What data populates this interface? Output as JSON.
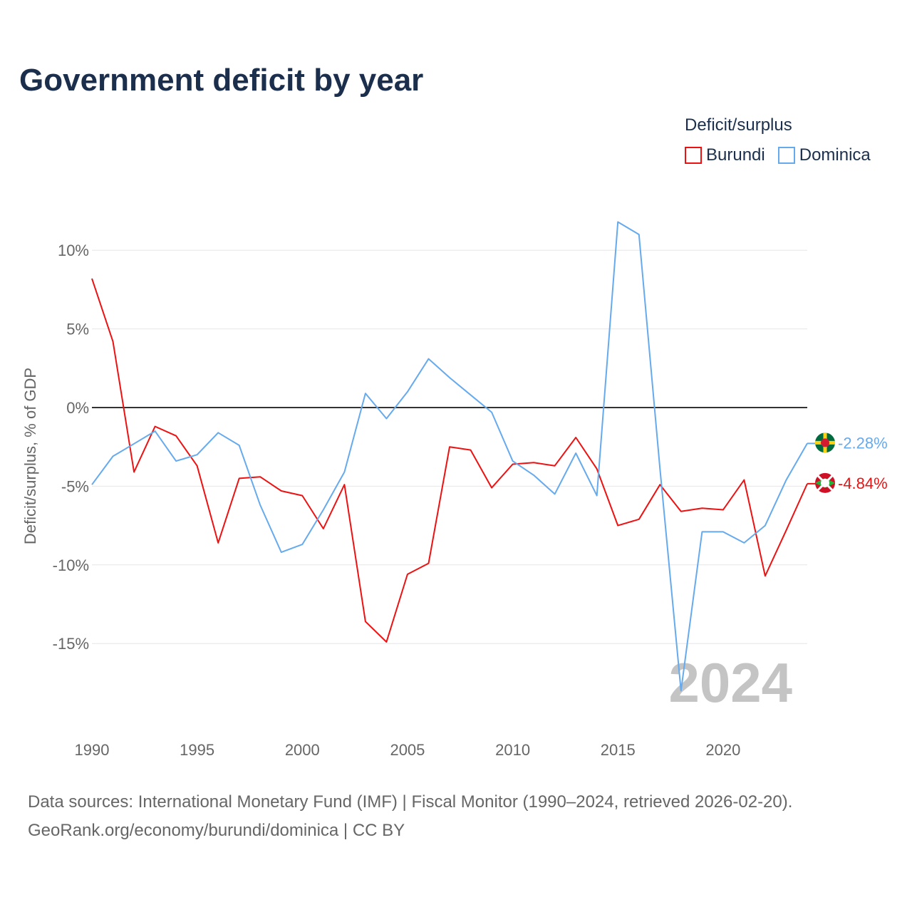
{
  "page": {
    "title": "Government deficit by year"
  },
  "legend": {
    "title": "Deficit/surplus",
    "items": [
      {
        "label": "Burundi",
        "color": "#ee1111"
      },
      {
        "label": "Dominica",
        "color": "#66aaee"
      }
    ]
  },
  "sources": {
    "line1": "Data sources: International Monetary Fund (IMF) | Fiscal Monitor (1990–2024, retrieved 2026-02-20).",
    "line2": "GeoRank.org/economy/burundi/dominica | CC BY"
  },
  "chart_data": {
    "type": "line",
    "title": "Government deficit by year",
    "xlabel": "",
    "ylabel": "Deficit/surplus, % of GDP",
    "xlim": [
      1990,
      2024
    ],
    "ylim": [
      -19,
      13
    ],
    "xticks": [
      1990,
      1995,
      2000,
      2005,
      2010,
      2015,
      2020
    ],
    "xtick_labels": [
      "1990",
      "1995",
      "2000",
      "2005",
      "2010",
      "2015",
      "2020"
    ],
    "yticks": [
      10,
      5,
      0,
      -5,
      -10,
      -15
    ],
    "ytick_labels": [
      "10%",
      "5%",
      "0%",
      "-5%",
      "-10%",
      "-15%"
    ],
    "year_label": "2024",
    "x": [
      1990,
      1991,
      1992,
      1993,
      1994,
      1995,
      1996,
      1997,
      1998,
      1999,
      2000,
      2001,
      2002,
      2003,
      2004,
      2005,
      2006,
      2007,
      2008,
      2009,
      2010,
      2011,
      2012,
      2013,
      2014,
      2015,
      2016,
      2017,
      2018,
      2019,
      2020,
      2021,
      2022,
      2023,
      2024
    ],
    "series": [
      {
        "name": "Burundi",
        "color": "#ee1111",
        "end_label": "-4.84%",
        "values": [
          8.2,
          4.2,
          -4.1,
          -1.2,
          -1.8,
          -3.7,
          -8.6,
          -4.5,
          -4.4,
          -5.3,
          -5.6,
          -7.7,
          -4.9,
          -13.6,
          -14.9,
          -10.6,
          -9.9,
          -2.5,
          -2.7,
          -5.1,
          -3.6,
          -3.5,
          -3.7,
          -1.9,
          -3.9,
          -7.5,
          -7.1,
          -4.9,
          -6.6,
          -6.4,
          -6.5,
          -4.6,
          -10.7,
          -7.8,
          -4.84
        ]
      },
      {
        "name": "Dominica",
        "color": "#66aaee",
        "end_label": "-2.28%",
        "values": [
          -4.9,
          -3.1,
          -2.3,
          -1.5,
          -3.4,
          -3.0,
          -1.6,
          -2.4,
          -6.2,
          -9.2,
          -8.7,
          -6.5,
          -4.1,
          0.9,
          -0.7,
          1.0,
          3.1,
          1.9,
          0.8,
          -0.3,
          -3.4,
          -4.3,
          -5.5,
          -2.9,
          -5.6,
          11.8,
          11.0,
          -3.9,
          -18.0,
          -7.9,
          -7.9,
          -8.6,
          -7.5,
          -4.6,
          -2.28
        ]
      }
    ]
  }
}
